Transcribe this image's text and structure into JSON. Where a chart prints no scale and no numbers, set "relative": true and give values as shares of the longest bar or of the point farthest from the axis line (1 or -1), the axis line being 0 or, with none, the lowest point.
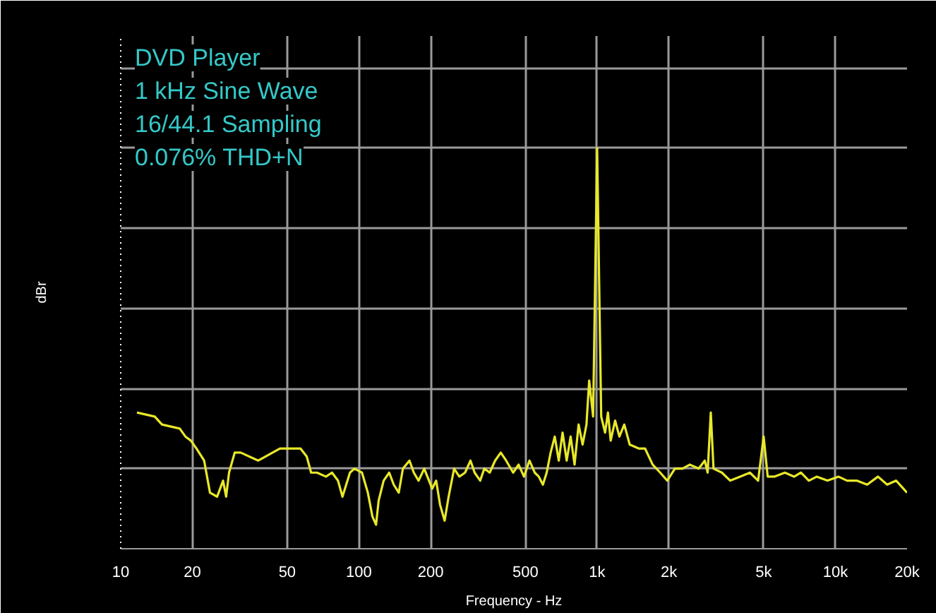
{
  "chart_data": {
    "type": "line",
    "title": "DVD Player",
    "annotations": [
      "1 kHz Sine Wave",
      "16/44.1 Sampling",
      "0.076% THD+N"
    ],
    "xlabel": "Frequency - Hz",
    "ylabel": "dBr",
    "relative": true,
    "log": "x",
    "grid": true,
    "xlim": [
      10,
      20000
    ],
    "xticks": [
      10,
      20,
      50,
      100,
      200,
      500,
      {
        "value": 1000,
        "label": "1k"
      },
      {
        "value": 2000,
        "label": "2k"
      },
      {
        "value": 5000,
        "label": "5k"
      },
      {
        "value": 10000,
        "label": "10k"
      },
      {
        "value": 20000,
        "label": "20k"
      }
    ],
    "x": [
      11.7,
      13.9,
      14.9,
      17.7,
      18.7,
      19.7,
      20.8,
      22.4,
      23.7,
      25.4,
      26.9,
      27.7,
      28.5,
      30.1,
      31.9,
      37.8,
      46.6,
      56.9,
      60.4,
      63.0,
      66.7,
      72.7,
      77.1,
      81.7,
      85.3,
      91.7,
      95.7,
      103,
      109,
      114,
      118,
      121,
      127,
      134,
      140,
      147,
      153,
      163,
      170,
      178,
      188,
      203,
      211,
      219,
      229,
      238,
      251,
      264,
      279,
      294,
      306,
      323,
      336,
      354,
      373,
      394,
      415,
      444,
      468,
      493,
      520,
      547,
      569,
      592,
      614,
      638,
      664,
      690,
      716,
      745,
      774,
      804,
      836,
      869,
      902,
      926,
      962,
      1000,
      1040,
      1080,
      1110,
      1140,
      1190,
      1240,
      1300,
      1370,
      1500,
      1590,
      1710,
      1840,
      1970,
      2120,
      2280,
      2450,
      2670,
      2830,
      2910,
      3000,
      3080,
      3340,
      3620,
      3980,
      4380,
      4740,
      5000,
      5200,
      5540,
      6140,
      6720,
      7170,
      7740,
      8360,
      9270,
      10300,
      11200,
      12300,
      13600,
      15100,
      16500,
      18000,
      20000
    ],
    "series": [
      {
        "color": "#e8e82a",
        "values": [
          0.34,
          0.33,
          0.31,
          0.3,
          0.28,
          0.27,
          0.25,
          0.22,
          0.14,
          0.13,
          0.17,
          0.13,
          0.19,
          0.24,
          0.24,
          0.22,
          0.25,
          0.25,
          0.23,
          0.19,
          0.19,
          0.18,
          0.19,
          0.17,
          0.13,
          0.19,
          0.2,
          0.19,
          0.14,
          0.08,
          0.06,
          0.12,
          0.17,
          0.19,
          0.16,
          0.14,
          0.2,
          0.22,
          0.19,
          0.17,
          0.2,
          0.15,
          0.17,
          0.11,
          0.07,
          0.13,
          0.2,
          0.18,
          0.19,
          0.22,
          0.19,
          0.17,
          0.2,
          0.19,
          0.22,
          0.24,
          0.22,
          0.19,
          0.21,
          0.18,
          0.22,
          0.19,
          0.18,
          0.16,
          0.19,
          0.24,
          0.28,
          0.22,
          0.29,
          0.22,
          0.28,
          0.21,
          0.31,
          0.26,
          0.31,
          0.42,
          0.33,
          1,
          0.33,
          0.29,
          0.34,
          0.27,
          0.32,
          0.28,
          0.31,
          0.26,
          0.25,
          0.25,
          0.21,
          0.19,
          0.17,
          0.2,
          0.2,
          0.21,
          0.2,
          0.22,
          0.19,
          0.34,
          0.2,
          0.19,
          0.17,
          0.18,
          0.19,
          0.17,
          0.28,
          0.18,
          0.18,
          0.19,
          0.18,
          0.19,
          0.17,
          0.18,
          0.17,
          0.18,
          0.17,
          0.17,
          0.16,
          0.18,
          0.16,
          0.17,
          0.14
        ]
      }
    ]
  }
}
